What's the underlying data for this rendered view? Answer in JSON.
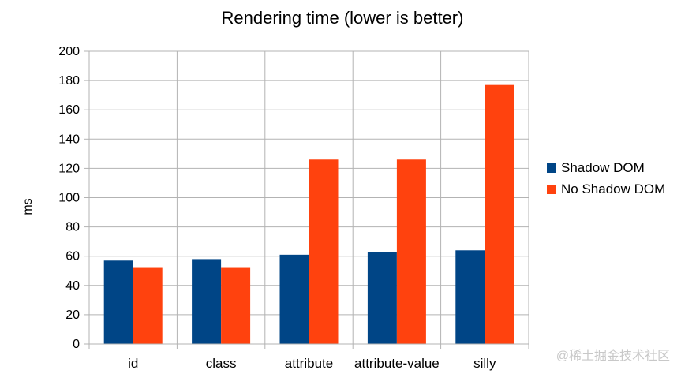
{
  "chart_data": {
    "type": "bar",
    "title": "Rendering time (lower is better)",
    "xlabel": "",
    "ylabel": "ms",
    "ylim": [
      0,
      200
    ],
    "ytick_step": 20,
    "categories": [
      "id",
      "class",
      "attribute",
      "attribute-value",
      "silly"
    ],
    "series": [
      {
        "name": "Shadow DOM",
        "color": "#004586",
        "values": [
          57,
          58,
          61,
          63,
          64
        ]
      },
      {
        "name": "No Shadow DOM",
        "color": "#ff420e",
        "values": [
          52,
          52,
          126,
          126,
          177
        ]
      }
    ],
    "grid": true,
    "legend": "right"
  },
  "watermark": "@稀土掘金技术社区"
}
